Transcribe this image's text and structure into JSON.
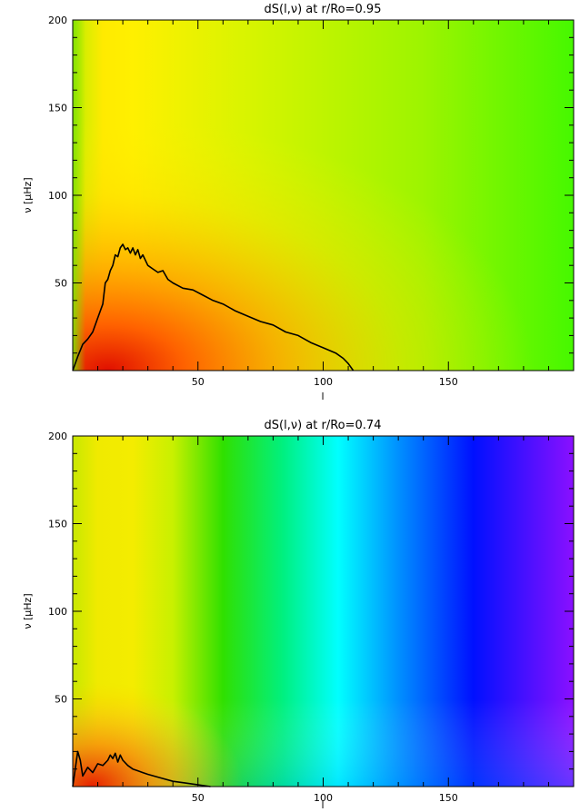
{
  "chart_data": [
    {
      "type": "heatmap",
      "title": "dS(l,ν) at r/Ro=0.95",
      "xlabel": "l",
      "ylabel": "ν [μHz]",
      "xlim": [
        0,
        200
      ],
      "ylim": [
        0,
        200
      ],
      "x_ticks": [
        50,
        100,
        150
      ],
      "y_ticks": [
        50,
        100,
        150,
        200
      ],
      "color_field": {
        "description_keys": [
          "l",
          "nu",
          "color"
        ],
        "samples": [
          {
            "l": 10,
            "nu": 5,
            "color": "#e01800"
          },
          {
            "l": 20,
            "nu": 50,
            "color": "#ff8a00"
          },
          {
            "l": 20,
            "nu": 180,
            "color": "#ffe800"
          },
          {
            "l": 60,
            "nu": 100,
            "color": "#e6f000"
          },
          {
            "l": 100,
            "nu": 30,
            "color": "#f4d600"
          },
          {
            "l": 150,
            "nu": 150,
            "color": "#a8f000"
          },
          {
            "l": 195,
            "nu": 195,
            "color": "#44ff00"
          }
        ]
      },
      "contour": {
        "color": "#000000",
        "x": [
          0,
          2,
          4,
          6,
          8,
          10,
          12,
          13,
          14,
          15,
          16,
          17,
          18,
          19,
          20,
          21,
          22,
          23,
          24,
          25,
          26,
          27,
          28,
          30,
          32,
          34,
          36,
          38,
          40,
          44,
          48,
          52,
          56,
          60,
          65,
          70,
          75,
          80,
          85,
          90,
          95,
          100,
          105,
          108,
          110,
          112
        ],
        "y": [
          0,
          8,
          15,
          18,
          22,
          30,
          38,
          50,
          52,
          57,
          60,
          66,
          65,
          70,
          72,
          69,
          70,
          67,
          70,
          66,
          69,
          64,
          66,
          60,
          58,
          56,
          57,
          52,
          50,
          47,
          46,
          43,
          40,
          38,
          34,
          31,
          28,
          26,
          22,
          20,
          16,
          13,
          10,
          7,
          4,
          0
        ]
      }
    },
    {
      "type": "heatmap",
      "title": "dS(l,ν) at r/Ro=0.74",
      "xlabel": "l",
      "ylabel": "ν [μHz]",
      "xlim": [
        0,
        200
      ],
      "ylim": [
        0,
        200
      ],
      "x_ticks": [
        50,
        100,
        150
      ],
      "y_ticks": [
        50,
        100,
        150,
        200
      ],
      "color_field": {
        "description_keys": [
          "l",
          "nu",
          "color"
        ],
        "samples": [
          {
            "l": 10,
            "nu": 5,
            "color": "#e83000"
          },
          {
            "l": 20,
            "nu": 100,
            "color": "#f0ec00"
          },
          {
            "l": 55,
            "nu": 100,
            "color": "#20e000"
          },
          {
            "l": 105,
            "nu": 100,
            "color": "#00ffff"
          },
          {
            "l": 160,
            "nu": 100,
            "color": "#0010ff"
          },
          {
            "l": 195,
            "nu": 195,
            "color": "#8010ff"
          }
        ]
      },
      "contour": {
        "color": "#000000",
        "x": [
          0,
          2,
          3,
          4,
          6,
          8,
          10,
          12,
          14,
          15,
          16,
          17,
          18,
          19,
          20,
          22,
          24,
          26,
          28,
          30,
          35,
          40,
          45,
          50,
          55
        ],
        "y": [
          0,
          20,
          15,
          6,
          11,
          8,
          13,
          12,
          15,
          18,
          16,
          19,
          14,
          18,
          15,
          12,
          10,
          9,
          8,
          7,
          5,
          3,
          2,
          1,
          0
        ]
      }
    }
  ]
}
